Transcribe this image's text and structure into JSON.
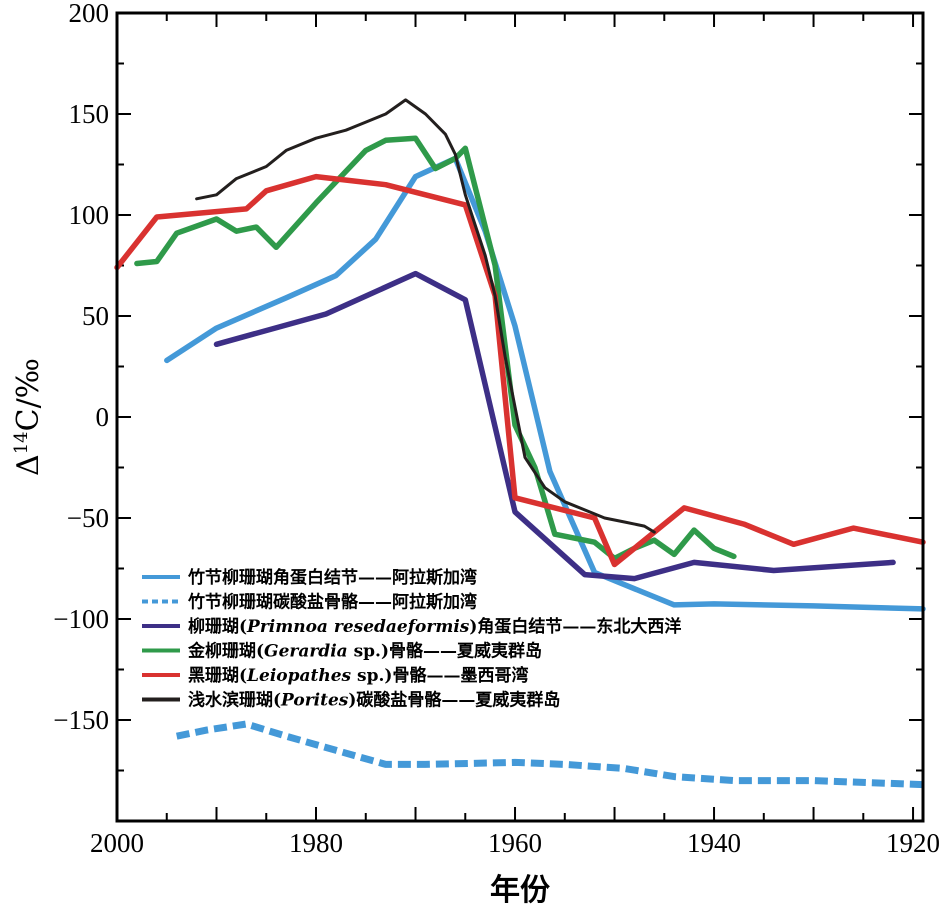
{
  "chart_data": {
    "type": "line",
    "xlabel": "年份",
    "ylabel_main": "Δ",
    "ylabel_sup": "14",
    "ylabel_rest": "C/‰",
    "xlim": [
      2000,
      1919
    ],
    "ylim": [
      -200,
      200
    ],
    "x_ticks": [
      2000,
      1980,
      1960,
      1940,
      1920
    ],
    "y_ticks": [
      200,
      150,
      100,
      50,
      0,
      -50,
      -100,
      -150
    ],
    "y_tick_labels": [
      "200",
      "150",
      "100",
      "50",
      "0",
      "−50",
      "−100",
      "−150"
    ],
    "series": [
      {
        "legend": [
          "竹节柳珊瑚角蛋白结节——阿拉斯加湾"
        ],
        "color": "#4499d8",
        "dashed": false,
        "x": [
          1995,
          1990,
          1983,
          1978,
          1974,
          1970,
          1966,
          1963,
          1960,
          1956.5,
          1952,
          1944,
          1940,
          1930,
          1919
        ],
        "y": [
          28,
          44,
          59,
          70,
          88,
          119,
          128,
          92,
          45,
          -27,
          -77,
          -93,
          -92.5,
          -93.5,
          -95
        ]
      },
      {
        "legend": [
          "竹节柳珊瑚碳酸盐骨骼——阿拉斯加湾"
        ],
        "color": "#4499d8",
        "dashed": true,
        "x": [
          1994,
          1991,
          1987,
          1983,
          1978,
          1973,
          1969,
          1960,
          1955,
          1949,
          1944,
          1938,
          1930,
          1919
        ],
        "y": [
          -158,
          -155,
          -152,
          -158,
          -165,
          -172,
          -172,
          -171,
          -172,
          -174,
          -178,
          -180,
          -180,
          -182
        ]
      },
      {
        "legend": [
          "柳珊瑚(",
          "Primnoa resedaeformis",
          ")角蛋白结节——东北大西洋"
        ],
        "color": "#3d2f86",
        "dashed": false,
        "x": [
          1990,
          1979,
          1970,
          1965,
          1960,
          1953,
          1948,
          1942,
          1934,
          1922
        ],
        "y": [
          36,
          51,
          71,
          58,
          -47,
          -78,
          -80,
          -72,
          -76,
          -72
        ]
      },
      {
        "legend": [
          "金柳珊瑚(",
          "Gerardia",
          " sp.)骨骼——夏威夷群岛"
        ],
        "color": "#2f9a4a",
        "dashed": false,
        "x": [
          1998,
          1996,
          1994,
          1990,
          1988,
          1986,
          1984,
          1980,
          1975,
          1973,
          1970,
          1968,
          1966,
          1965,
          1962,
          1960,
          1958,
          1956,
          1952,
          1950,
          1948,
          1946,
          1944,
          1942,
          1940,
          1938
        ],
        "y": [
          76,
          77,
          91,
          98,
          92,
          94,
          84,
          106,
          132,
          137,
          138,
          123,
          128,
          133,
          75,
          -4,
          -25,
          -58,
          -62,
          -70,
          -65,
          -61,
          -68,
          -56,
          -65,
          -69
        ]
      },
      {
        "legend": [
          "黑珊瑚(",
          "Leiopathes",
          " sp.)骨骼——墨西哥湾"
        ],
        "color": "#d93230",
        "dashed": false,
        "x": [
          2000,
          1996,
          1987,
          1985,
          1980,
          1973,
          1965,
          1962,
          1960,
          1952,
          1950,
          1943,
          1937,
          1932,
          1926,
          1919
        ],
        "y": [
          74,
          99,
          103,
          112,
          119,
          115,
          105,
          60,
          -40,
          -50,
          -73,
          -45,
          -53,
          -63,
          -55,
          -62
        ]
      },
      {
        "legend": [
          "浅水滨珊瑚(",
          "Porites",
          ")碳酸盐骨骼——夏威夷群岛"
        ],
        "color": "#231f1e",
        "dashed": false,
        "x": [
          1992,
          1990,
          1988,
          1985,
          1983,
          1980,
          1977,
          1975,
          1973,
          1971,
          1969,
          1967,
          1966,
          1965,
          1964,
          1963,
          1962,
          1961,
          1960,
          1959,
          1957,
          1955,
          1953,
          1951,
          1949,
          1947,
          1946
        ],
        "y": [
          108,
          110,
          118,
          124,
          132,
          138,
          142,
          146,
          150,
          157,
          150,
          140,
          130,
          110,
          95,
          80,
          60,
          30,
          5,
          -20,
          -35,
          -42,
          -46,
          -50,
          -52,
          -54,
          -57
        ]
      }
    ]
  }
}
